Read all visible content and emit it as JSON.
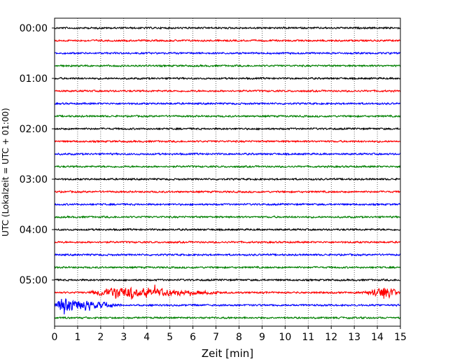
{
  "chart_data": {
    "type": "line",
    "title": "",
    "xlabel": "Zeit  [min]",
    "ylabel": "UTC (Lokalzeit = UTC + 01:00)",
    "xlim": [
      0,
      15
    ],
    "x_ticks": [
      "0",
      "1",
      "2",
      "3",
      "4",
      "5",
      "6",
      "7",
      "8",
      "9",
      "10",
      "11",
      "12",
      "13",
      "14",
      "15"
    ],
    "y_ticks": [
      "00:00",
      "01:00",
      "02:00",
      "03:00",
      "04:00",
      "05:00"
    ],
    "grid": "vertical dotted",
    "trace_interval_min": 15,
    "trace_colors": [
      "#000000",
      "#ff0000",
      "#0000ff",
      "#008000"
    ],
    "trace_count": 24,
    "events": [
      {
        "trace": 21,
        "start_min": 1.4,
        "peak_min": 2.8,
        "end_min": 7.5,
        "color": "#ff0000"
      },
      {
        "trace": 21,
        "start_min": 13.3,
        "peak_min": 14.5,
        "end_min": 15,
        "color": "#ff0000"
      },
      {
        "trace": 22,
        "start_min": 0.0,
        "peak_min": 0.3,
        "end_min": 3.0,
        "color": "#0000ff"
      }
    ]
  }
}
